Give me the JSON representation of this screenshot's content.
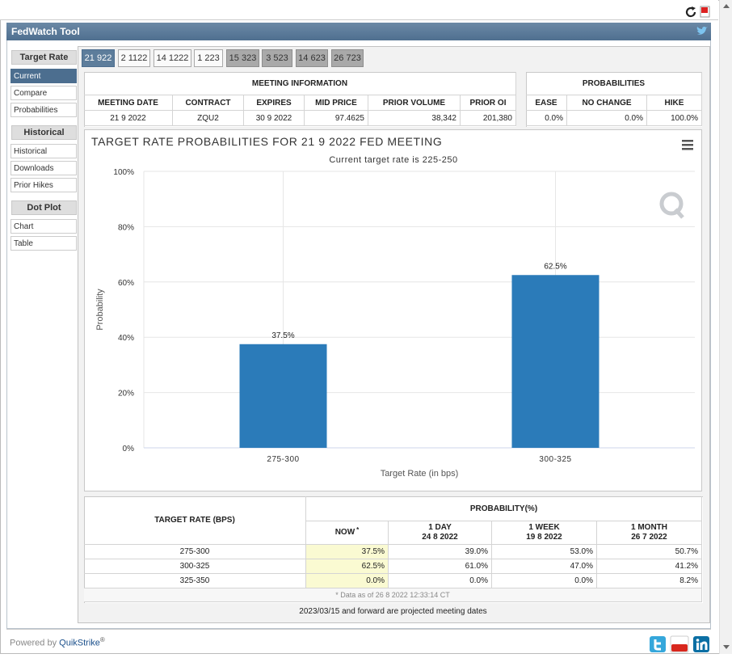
{
  "header": {
    "title": "FedWatch Tool"
  },
  "sidebar": [
    {
      "title": "Target Rate",
      "items": [
        "Current",
        "Compare",
        "Probabilities"
      ]
    },
    {
      "title": "Historical",
      "items": [
        "Historical",
        "Downloads",
        "Prior Hikes"
      ]
    },
    {
      "title": "Dot Plot",
      "items": [
        "Chart",
        "Table"
      ]
    }
  ],
  "tabs": [
    "21 922",
    "2 1122",
    "14 1222",
    "1 223",
    "15 323",
    "3 523",
    "14 623",
    "26 723"
  ],
  "meeting_info": {
    "title": "MEETING INFORMATION",
    "columns": [
      "MEETING DATE",
      "CONTRACT",
      "EXPIRES",
      "MID PRICE",
      "PRIOR VOLUME",
      "PRIOR OI"
    ],
    "row": [
      "21 9 2022",
      "ZQU2",
      "30 9 2022",
      "97.4625",
      "38,342",
      "201,380"
    ]
  },
  "probabilities": {
    "title": "PROBABILITIES",
    "columns": [
      "EASE",
      "NO CHANGE",
      "HIKE"
    ],
    "row": [
      "0.0%",
      "0.0%",
      "100.0%"
    ]
  },
  "chart_data": {
    "type": "bar",
    "title": "TARGET RATE PROBABILITIES FOR 21 9 2022 FED MEETING",
    "subtitle": "Current target rate is 225-250",
    "x_label": "Target Rate (in bps)",
    "y_label": "Probability",
    "categories": [
      "275-300",
      "300-325"
    ],
    "values": [
      37.5,
      62.5
    ],
    "value_labels": [
      "37.5%",
      "62.5%"
    ],
    "color": "#2b7bb9",
    "ylim": [
      0,
      100
    ],
    "yticks": [
      {
        "value": 0,
        "label": "0%"
      },
      {
        "value": 20,
        "label": "20%"
      },
      {
        "value": 40,
        "label": "40%"
      },
      {
        "value": 60,
        "label": "60%"
      },
      {
        "value": 80,
        "label": "80%"
      },
      {
        "value": 100,
        "label": "100%"
      }
    ],
    "grid": true
  },
  "prob_table": {
    "row_header": "TARGET RATE (BPS)",
    "group_header": "PROBABILITY(%)",
    "columns": [
      {
        "label": "NOW",
        "note": "*"
      },
      {
        "label": "1 DAY",
        "date": "24 8 2022"
      },
      {
        "label": "1 WEEK",
        "date": "19 8 2022"
      },
      {
        "label": "1 MONTH",
        "date": "26 7 2022"
      }
    ],
    "rows": [
      [
        "275-300",
        "37.5%",
        "39.0%",
        "53.0%",
        "50.7%"
      ],
      [
        "300-325",
        "62.5%",
        "61.0%",
        "47.0%",
        "41.2%"
      ],
      [
        "325-350",
        "0.0%",
        "0.0%",
        "0.0%",
        "8.2%"
      ]
    ],
    "footnote": "* Data as of 26 8 2022 12:33:14 CT"
  },
  "projection_note": "2023/03/15 and forward are projected meeting dates",
  "footer": {
    "powered_by": "Powered by",
    "brand": "QuikStrike",
    "mark": "®"
  }
}
